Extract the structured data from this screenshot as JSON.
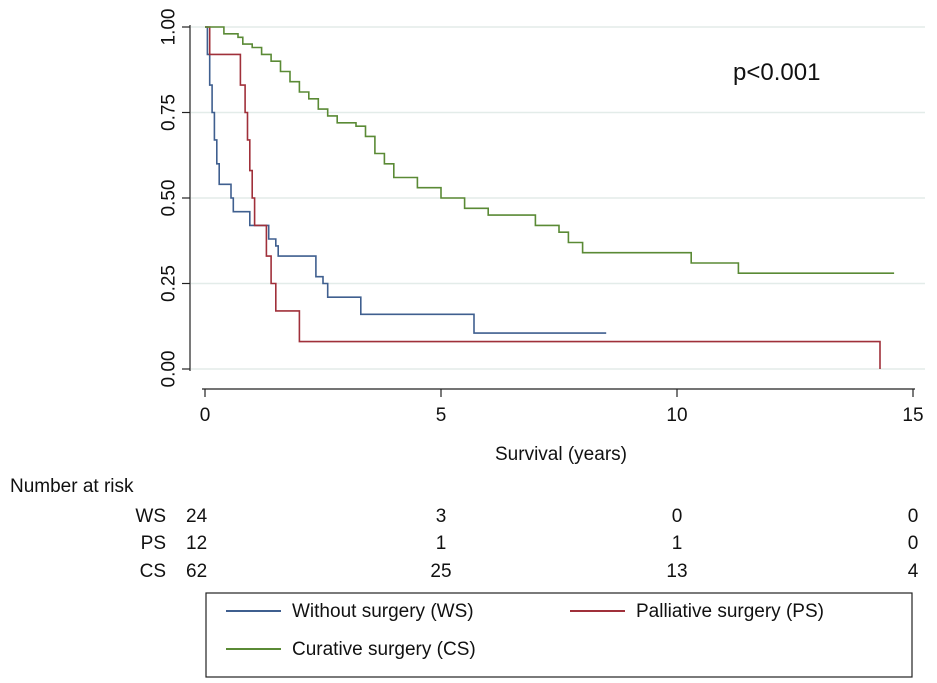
{
  "chart_data": {
    "type": "line",
    "subtype": "kaplan-meier",
    "title": "",
    "xlabel": "Survival (years)",
    "ylabel": "",
    "xlim": [
      0,
      15
    ],
    "ylim": [
      0,
      1
    ],
    "x_ticks": [
      {
        "value": 0,
        "label": "0"
      },
      {
        "value": 5,
        "label": "5"
      },
      {
        "value": 10,
        "label": "10"
      },
      {
        "value": 15,
        "label": "15"
      }
    ],
    "y_ticks": [
      {
        "value": 0,
        "label": "0.00"
      },
      {
        "value": 0.25,
        "label": "0.25"
      },
      {
        "value": 0.5,
        "label": "0.50"
      },
      {
        "value": 0.75,
        "label": "0.75"
      },
      {
        "value": 1,
        "label": "1.00"
      }
    ],
    "grid": "horizontal",
    "annotation": "p<0.001",
    "series": [
      {
        "name": "Without surgery (WS)",
        "abbr": "WS",
        "color": "#3f5f8f",
        "points": [
          [
            0,
            1.0
          ],
          [
            0.05,
            0.92
          ],
          [
            0.1,
            0.83
          ],
          [
            0.15,
            0.75
          ],
          [
            0.2,
            0.67
          ],
          [
            0.25,
            0.6
          ],
          [
            0.3,
            0.54
          ],
          [
            0.5,
            0.54
          ],
          [
            0.55,
            0.5
          ],
          [
            0.6,
            0.46
          ],
          [
            0.9,
            0.46
          ],
          [
            0.95,
            0.42
          ],
          [
            1.3,
            0.42
          ],
          [
            1.35,
            0.38
          ],
          [
            1.5,
            0.36
          ],
          [
            1.55,
            0.33
          ],
          [
            2.3,
            0.33
          ],
          [
            2.35,
            0.27
          ],
          [
            2.5,
            0.25
          ],
          [
            2.6,
            0.21
          ],
          [
            3.2,
            0.21
          ],
          [
            3.3,
            0.16
          ],
          [
            5.6,
            0.16
          ],
          [
            5.7,
            0.105
          ],
          [
            8.5,
            0.105
          ]
        ]
      },
      {
        "name": "Palliative surgery (PS)",
        "abbr": "PS",
        "color": "#a0303a",
        "points": [
          [
            0,
            1.0
          ],
          [
            0.1,
            0.92
          ],
          [
            0.7,
            0.92
          ],
          [
            0.75,
            0.83
          ],
          [
            0.85,
            0.75
          ],
          [
            0.9,
            0.67
          ],
          [
            0.95,
            0.58
          ],
          [
            1.0,
            0.5
          ],
          [
            1.05,
            0.42
          ],
          [
            1.1,
            0.42
          ],
          [
            1.3,
            0.33
          ],
          [
            1.4,
            0.25
          ],
          [
            1.5,
            0.17
          ],
          [
            1.9,
            0.17
          ],
          [
            2.0,
            0.08
          ],
          [
            14.3,
            0.08
          ],
          [
            14.3,
            0.0
          ]
        ]
      },
      {
        "name": "Curative surgery (CS)",
        "abbr": "CS",
        "color": "#5a8a35",
        "points": [
          [
            0,
            1.0
          ],
          [
            0.3,
            1.0
          ],
          [
            0.4,
            0.98
          ],
          [
            0.6,
            0.98
          ],
          [
            0.7,
            0.97
          ],
          [
            0.8,
            0.95
          ],
          [
            1.0,
            0.94
          ],
          [
            1.2,
            0.92
          ],
          [
            1.4,
            0.9
          ],
          [
            1.6,
            0.87
          ],
          [
            1.8,
            0.84
          ],
          [
            2.0,
            0.81
          ],
          [
            2.2,
            0.79
          ],
          [
            2.4,
            0.76
          ],
          [
            2.6,
            0.74
          ],
          [
            2.8,
            0.72
          ],
          [
            3.2,
            0.71
          ],
          [
            3.4,
            0.68
          ],
          [
            3.6,
            0.63
          ],
          [
            3.8,
            0.6
          ],
          [
            4.0,
            0.56
          ],
          [
            4.5,
            0.53
          ],
          [
            5.0,
            0.5
          ],
          [
            5.5,
            0.47
          ],
          [
            6.0,
            0.45
          ],
          [
            7.0,
            0.42
          ],
          [
            7.5,
            0.4
          ],
          [
            7.7,
            0.37
          ],
          [
            8.0,
            0.34
          ],
          [
            10.0,
            0.34
          ],
          [
            10.3,
            0.31
          ],
          [
            11.2,
            0.31
          ],
          [
            11.3,
            0.28
          ],
          [
            14.6,
            0.28
          ]
        ]
      }
    ],
    "risk_table": {
      "title": "Number at risk",
      "time_points": [
        0,
        5,
        10,
        15
      ],
      "rows": [
        {
          "label": "WS",
          "values": [
            "24",
            "3",
            "0",
            "0"
          ]
        },
        {
          "label": "PS",
          "values": [
            "12",
            "1",
            "1",
            "0"
          ]
        },
        {
          "label": "CS",
          "values": [
            "62",
            "25",
            "13",
            "4"
          ]
        }
      ]
    },
    "legend": {
      "placement": "bottom",
      "entries": [
        {
          "label": "Without surgery (WS)",
          "color": "#3f5f8f"
        },
        {
          "label": "Palliative surgery (PS)",
          "color": "#a0303a"
        },
        {
          "label": "Curative surgery (CS)",
          "color": "#5a8a35"
        }
      ]
    }
  }
}
